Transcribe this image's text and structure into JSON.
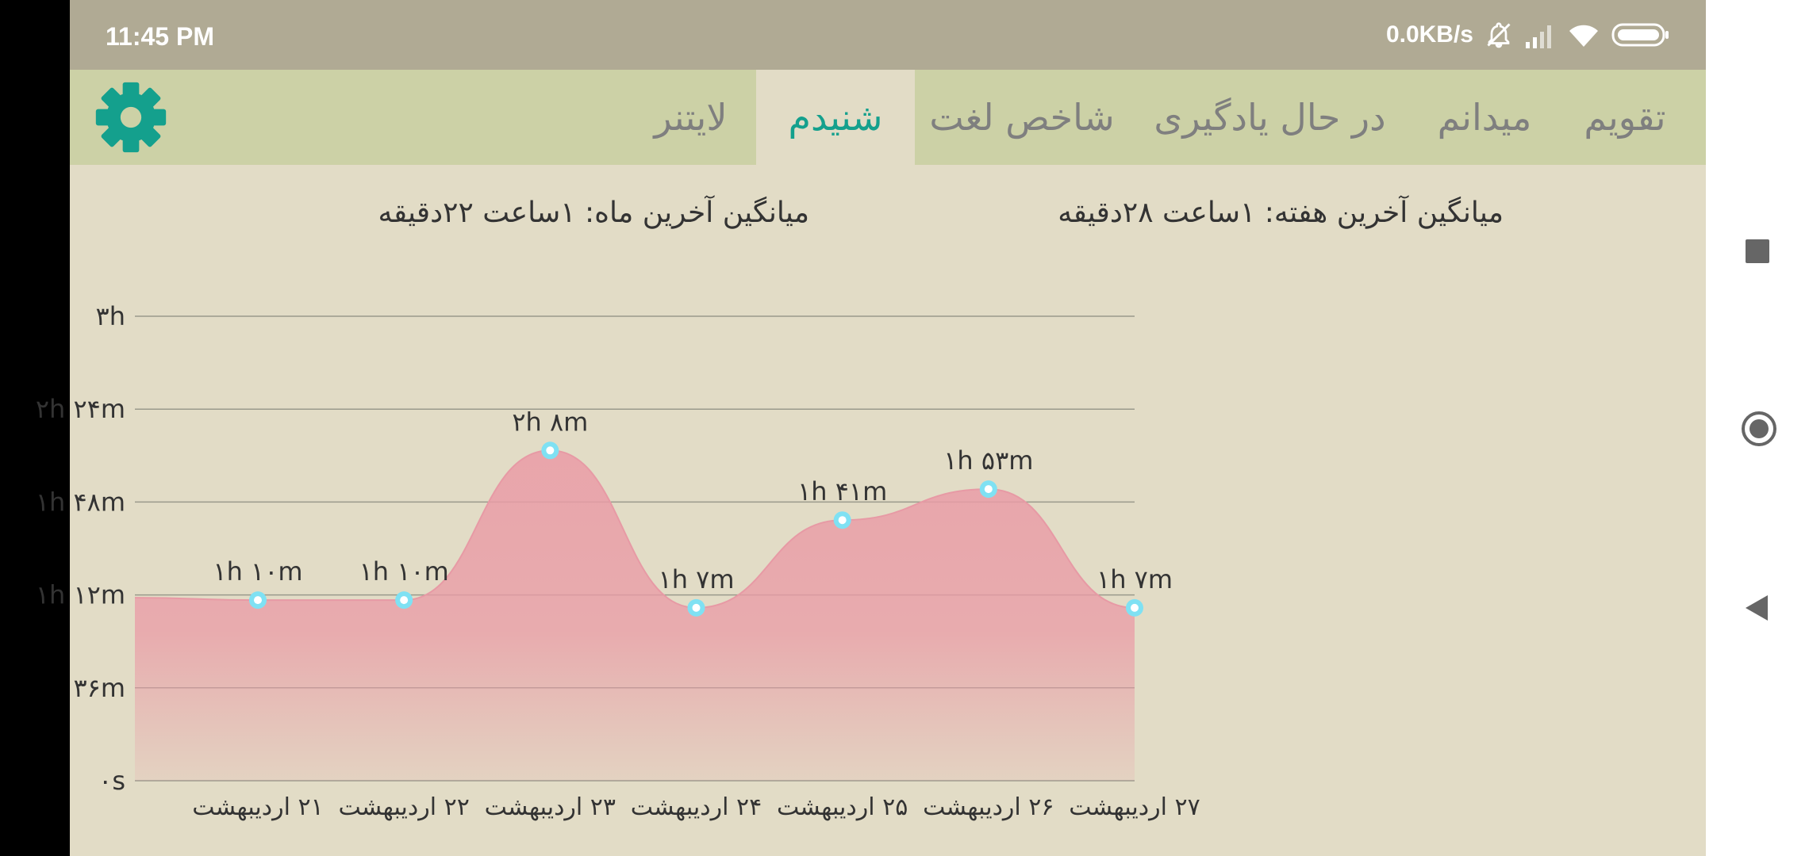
{
  "status_bar": {
    "time": "11:45 PM",
    "network_speed": "0.0KB/s",
    "icons": [
      "bell-off-icon",
      "signal-icon",
      "wifi-icon",
      "battery-icon"
    ]
  },
  "tabs": [
    {
      "label": "تقویم",
      "active": false
    },
    {
      "label": "میدانم",
      "active": false
    },
    {
      "label": "در حال یادگیری",
      "active": false
    },
    {
      "label": "شاخص لغت",
      "active": false
    },
    {
      "label": "شنیدم",
      "active": true
    },
    {
      "label": "لایتنر",
      "active": false
    }
  ],
  "settings_icon": "gear-icon",
  "averages": {
    "week": "میانگین آخرین هفته: ۱ساعت  ۲۸دقیقه",
    "month": "میانگین آخرین ماه: ۱ساعت  ۲۲دقیقه"
  },
  "colors": {
    "accent": "#14a08d",
    "area_fill": "#ea9ba6",
    "point": "#7fe1f3"
  },
  "chart_data": {
    "type": "area",
    "y_ticks": [
      "۰s",
      "۳۶m",
      "۱h ۱۲m",
      "۱h ۴۸m",
      "۲h ۲۴m",
      "۳h"
    ],
    "ylim": [
      0,
      180
    ],
    "x_labels": [
      "۲۱ اردیبهشت",
      "۲۲ اردیبهشت",
      "۲۳ اردیبهشت",
      "۲۴ اردیبهشت",
      "۲۵ اردیبهشت",
      "۲۶ اردیبهشت",
      "۲۷ اردیبهشت"
    ],
    "points": [
      {
        "x": "۲۱ اردیبهشت",
        "minutes": 70,
        "label": "۱h ۱۰m"
      },
      {
        "x": "۲۲ اردیبهشت",
        "minutes": 70,
        "label": "۱h ۱۰m"
      },
      {
        "x": "۲۳ اردیبهشت",
        "minutes": 128,
        "label": "۲h ۸m"
      },
      {
        "x": "۲۴ اردیبهشت",
        "minutes": 67,
        "label": "۱h ۷m"
      },
      {
        "x": "۲۵ اردیبهشت",
        "minutes": 101,
        "label": "۱h ۴۱m"
      },
      {
        "x": "۲۶ اردیبهشت",
        "minutes": 113,
        "label": "۱h ۵۳m"
      },
      {
        "x": "۲۷ اردیبهشت",
        "minutes": 67,
        "label": "۱h ۷m"
      }
    ],
    "grid": true
  },
  "nav_bar": {
    "buttons": [
      "recents-icon",
      "home-icon",
      "back-icon"
    ]
  }
}
